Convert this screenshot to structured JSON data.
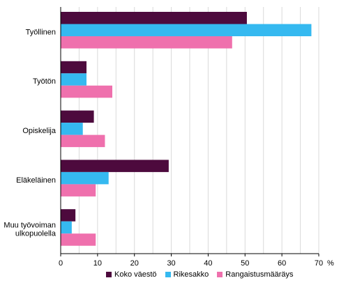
{
  "chart_data": {
    "type": "bar",
    "orientation": "horizontal",
    "categories": [
      "Työllinen",
      "Työtön",
      "Opiskelija",
      "Eläkeläinen",
      "Muu työvoiman ulkopuolella"
    ],
    "series": [
      {
        "name": "Koko väestö",
        "color": "#4d0a3d",
        "values": [
          50.5,
          7,
          9,
          29.3,
          4
        ]
      },
      {
        "name": "Rikesakko",
        "color": "#35b9f0",
        "values": [
          68,
          7,
          6,
          13,
          3
        ]
      },
      {
        "name": "Rangaistusmääräys",
        "color": "#ef70ad",
        "values": [
          46.5,
          14,
          12,
          9.5,
          9.5
        ]
      }
    ],
    "xlim": [
      0,
      70
    ],
    "xticks": [
      0,
      10,
      20,
      30,
      40,
      50,
      60,
      70
    ],
    "xunit": "%",
    "grid": true,
    "legend_position": "bottom"
  }
}
